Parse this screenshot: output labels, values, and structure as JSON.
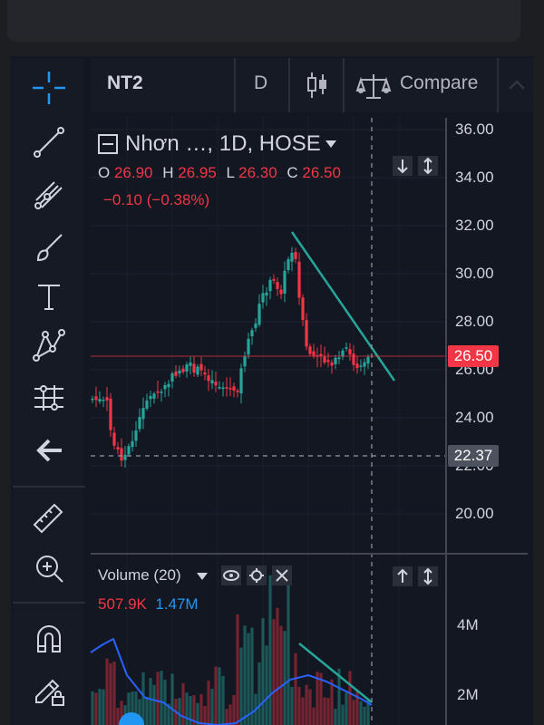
{
  "header": {
    "symbol": "NT2",
    "interval": "D",
    "compare_label": "Compare"
  },
  "legend": {
    "title": "Nhơn …, 1D, HOSE",
    "open_label": "O",
    "open": "26.90",
    "high_label": "H",
    "high": "26.95",
    "low_label": "L",
    "low": "26.30",
    "close_label": "C",
    "close": "26.50",
    "change": "−0.10 (−0.38%)"
  },
  "price_axis": {
    "ticks": [
      "36.00",
      "34.00",
      "32.00",
      "30.00",
      "28.00",
      "26.00",
      "24.00",
      "22.00",
      "20.00"
    ]
  },
  "last_price_tag": "26.50",
  "crosshair_price_tag": "22.37",
  "volume": {
    "title": "Volume (20)",
    "value": "507.9K",
    "ma_value": "1.47M",
    "ticks": [
      "4M",
      "2M"
    ]
  },
  "colors": {
    "up": "#26a69a",
    "down": "#f23645",
    "background": "#131722",
    "trendline": "#26a69a",
    "ma": "#2962ff"
  },
  "tools": [
    "crosshair-icon",
    "trend-line-icon",
    "fib-icon",
    "brush-icon",
    "text-icon",
    "pattern-icon",
    "prediction-icon",
    "back-arrow-icon",
    "ruler-icon",
    "zoom-in-icon",
    "magnet-icon",
    "lock-pencil-icon"
  ]
}
